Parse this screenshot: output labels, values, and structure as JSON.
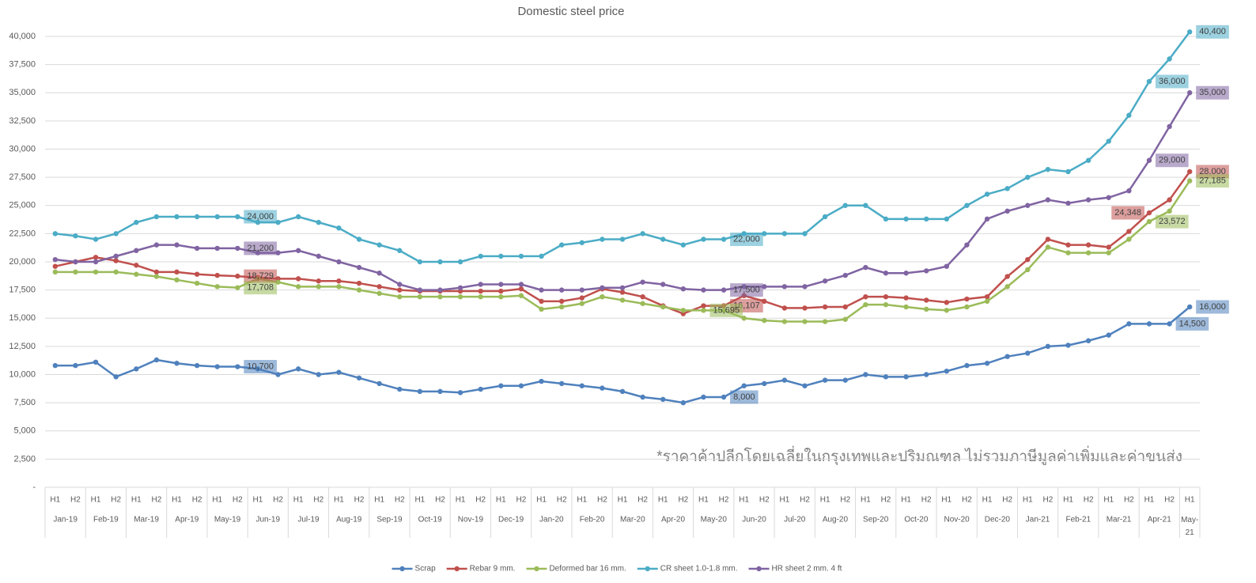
{
  "chart_data": {
    "type": "line",
    "title": "Domestic steel price",
    "categories": [
      "H1",
      "H2",
      "H1",
      "H2",
      "H1",
      "H2",
      "H1",
      "H2",
      "H1",
      "H2",
      "H1",
      "H2",
      "H1",
      "H2",
      "H1",
      "H2",
      "H1",
      "H2",
      "H1",
      "H2",
      "H1",
      "H2",
      "H1",
      "H2",
      "H1",
      "H2",
      "H1",
      "H2",
      "H1",
      "H2",
      "H1",
      "H2",
      "H1",
      "H2",
      "H1",
      "H2",
      "H1",
      "H2",
      "H1",
      "H2",
      "H1",
      "H2",
      "H1",
      "H2",
      "H1",
      "H2",
      "H1",
      "H2",
      "H1",
      "H2",
      "H1",
      "H2",
      "H1",
      "H2",
      "H1",
      "H2",
      "H1"
    ],
    "category_groups": [
      "Jan-19",
      "Feb-19",
      "Mar-19",
      "Apr-19",
      "May-19",
      "Jun-19",
      "Jul-19",
      "Aug-19",
      "Sep-19",
      "Oct-19",
      "Nov-19",
      "Dec-19",
      "Jan-20",
      "Feb-20",
      "Mar-20",
      "Apr-20",
      "May-20",
      "Jun-20",
      "Jul-20",
      "Aug-20",
      "Sep-20",
      "Oct-20",
      "Nov-20",
      "Dec-20",
      "Jan-21",
      "Feb-21",
      "Mar-21",
      "Apr-21",
      "May-21"
    ],
    "ylim": [
      0,
      40000
    ],
    "yticks": [
      {
        "value": 0,
        "label": "-"
      },
      {
        "value": 2500,
        "label": "2,500"
      },
      {
        "value": 5000,
        "label": "5,000"
      },
      {
        "value": 7500,
        "label": "7,500"
      },
      {
        "value": 10000,
        "label": "10,000"
      },
      {
        "value": 12500,
        "label": "12,500"
      },
      {
        "value": 15000,
        "label": "15,000"
      },
      {
        "value": 17500,
        "label": "17,500"
      },
      {
        "value": 20000,
        "label": "20,000"
      },
      {
        "value": 22500,
        "label": "22,500"
      },
      {
        "value": 25000,
        "label": "25,000"
      },
      {
        "value": 27500,
        "label": "27,500"
      },
      {
        "value": 30000,
        "label": "30,000"
      },
      {
        "value": 32500,
        "label": "32,500"
      },
      {
        "value": 35000,
        "label": "35,000"
      },
      {
        "value": 37500,
        "label": "37,500"
      },
      {
        "value": 40000,
        "label": "40,000"
      }
    ],
    "grid": true,
    "legend": "bottom",
    "series": [
      {
        "name": "Scrap",
        "color": "#4f81bd",
        "values": [
          10800,
          10800,
          11100,
          9800,
          10500,
          11300,
          11000,
          10800,
          10700,
          10700,
          10500,
          10000,
          10500,
          10000,
          10200,
          9700,
          9200,
          8700,
          8500,
          8500,
          8400,
          8700,
          9000,
          9000,
          9400,
          9200,
          9000,
          8800,
          8500,
          8000,
          7800,
          7500,
          8000,
          8000,
          9000,
          9200,
          9500,
          9000,
          9500,
          9500,
          10000,
          9800,
          9800,
          10000,
          10300,
          10800,
          11000,
          11600,
          11900,
          12500,
          12600,
          13000,
          13500,
          14500,
          14500,
          14500,
          16000
        ],
        "value_labels": [
          null,
          null,
          null,
          null,
          null,
          null,
          null,
          null,
          null,
          "10,700",
          null,
          null,
          null,
          null,
          null,
          null,
          null,
          null,
          null,
          null,
          null,
          null,
          null,
          null,
          null,
          null,
          null,
          null,
          null,
          null,
          null,
          null,
          null,
          "8,000",
          null,
          null,
          null,
          null,
          null,
          null,
          null,
          null,
          null,
          null,
          null,
          null,
          null,
          null,
          null,
          null,
          null,
          null,
          null,
          null,
          null,
          "14,500",
          "16,000"
        ]
      },
      {
        "name": "Rebar 9 mm.",
        "color": "#c0504d",
        "values": [
          19600,
          20000,
          20400,
          20100,
          19700,
          19100,
          19100,
          18900,
          18800,
          18729,
          18600,
          18500,
          18500,
          18300,
          18300,
          18100,
          17800,
          17500,
          17400,
          17400,
          17400,
          17400,
          17400,
          17600,
          16500,
          16500,
          16800,
          17600,
          17300,
          16900,
          16100,
          15400,
          16100,
          16107,
          17000,
          16500,
          15900,
          15900,
          16000,
          16000,
          16900,
          16900,
          16800,
          16600,
          16400,
          16700,
          16900,
          18700,
          20200,
          22000,
          21500,
          21500,
          21300,
          22700,
          24348,
          25500,
          28000
        ],
        "value_labels": [
          null,
          null,
          null,
          null,
          null,
          null,
          null,
          null,
          null,
          "18,729",
          null,
          null,
          null,
          null,
          null,
          null,
          null,
          null,
          null,
          null,
          null,
          null,
          null,
          null,
          null,
          null,
          null,
          null,
          null,
          null,
          null,
          null,
          null,
          "16,107",
          null,
          null,
          null,
          null,
          null,
          null,
          null,
          null,
          null,
          null,
          null,
          null,
          null,
          null,
          null,
          null,
          null,
          null,
          null,
          null,
          "24,348",
          null,
          "28,000"
        ]
      },
      {
        "name": "Deformed bar 16 mm.",
        "color": "#9bbb59",
        "values": [
          19100,
          19100,
          19100,
          19100,
          18900,
          18700,
          18400,
          18100,
          17800,
          17708,
          18500,
          18200,
          17800,
          17800,
          17800,
          17500,
          17200,
          16900,
          16900,
          16900,
          16900,
          16900,
          16900,
          17000,
          15800,
          16000,
          16300,
          16900,
          16600,
          16300,
          16000,
          15700,
          15695,
          15700,
          15000,
          14800,
          14700,
          14700,
          14700,
          14900,
          16200,
          16200,
          16000,
          15800,
          15700,
          16000,
          16500,
          17800,
          19300,
          21300,
          20800,
          20800,
          20800,
          22000,
          23572,
          24500,
          27185
        ],
        "value_labels": [
          null,
          null,
          null,
          null,
          null,
          null,
          null,
          null,
          null,
          "17,708",
          null,
          null,
          null,
          null,
          null,
          null,
          null,
          null,
          null,
          null,
          null,
          null,
          null,
          null,
          null,
          null,
          null,
          null,
          null,
          null,
          null,
          null,
          "15,695",
          null,
          null,
          null,
          null,
          null,
          null,
          null,
          null,
          null,
          null,
          null,
          null,
          null,
          null,
          null,
          null,
          null,
          null,
          null,
          null,
          null,
          "23,572",
          null,
          "27,185"
        ]
      },
      {
        "name": "CR sheet 1.0-1.8 mm.",
        "color": "#4bacc6",
        "values": [
          22500,
          22300,
          22000,
          22500,
          23500,
          24000,
          24000,
          24000,
          24000,
          24000,
          23500,
          23500,
          24000,
          23500,
          23000,
          22000,
          21500,
          21000,
          20000,
          20000,
          20000,
          20500,
          20500,
          20500,
          20500,
          21500,
          21700,
          22000,
          22000,
          22500,
          22000,
          21500,
          22000,
          22000,
          22500,
          22500,
          22500,
          22500,
          24000,
          25000,
          25000,
          23800,
          23800,
          23800,
          23800,
          25000,
          26000,
          26500,
          27500,
          28200,
          28000,
          29000,
          30700,
          33000,
          36000,
          38000,
          40400
        ],
        "value_labels": [
          null,
          null,
          null,
          null,
          null,
          null,
          null,
          null,
          null,
          "24,000",
          null,
          null,
          null,
          null,
          null,
          null,
          null,
          null,
          null,
          null,
          null,
          null,
          null,
          null,
          null,
          null,
          null,
          null,
          null,
          null,
          null,
          null,
          null,
          "22,000",
          null,
          null,
          null,
          null,
          null,
          null,
          null,
          null,
          null,
          null,
          null,
          null,
          null,
          null,
          null,
          null,
          null,
          null,
          null,
          null,
          "36,000",
          null,
          "40,400"
        ]
      },
      {
        "name": "HR sheet 2 mm. 4 ft",
        "color": "#8064a2",
        "values": [
          20200,
          20000,
          20000,
          20500,
          21000,
          21500,
          21500,
          21200,
          21200,
          21200,
          20800,
          20800,
          21000,
          20500,
          20000,
          19500,
          19000,
          18000,
          17500,
          17500,
          17700,
          18000,
          18000,
          18000,
          17500,
          17500,
          17500,
          17700,
          17700,
          18200,
          18000,
          17600,
          17500,
          17500,
          17800,
          17800,
          17800,
          17800,
          18300,
          18800,
          19500,
          19000,
          19000,
          19200,
          19600,
          21500,
          23800,
          24500,
          25000,
          25500,
          25200,
          25500,
          25700,
          26300,
          29000,
          32000,
          35000
        ],
        "value_labels": [
          null,
          null,
          null,
          null,
          null,
          null,
          null,
          null,
          null,
          "21,200",
          null,
          null,
          null,
          null,
          null,
          null,
          null,
          null,
          null,
          null,
          null,
          null,
          null,
          null,
          null,
          null,
          null,
          null,
          null,
          null,
          null,
          null,
          null,
          "17,500",
          null,
          null,
          null,
          null,
          null,
          null,
          null,
          null,
          null,
          null,
          null,
          null,
          null,
          null,
          null,
          null,
          null,
          null,
          null,
          null,
          "29,000",
          null,
          "35,000"
        ]
      }
    ],
    "annotations": [
      "*ราคาค้าปลีกโดยเฉลี่ยในกรุงเทพและปริมณฑล ไม่รวมภาษีมูลค่าเพิ่มและค่าขนส่ง"
    ]
  }
}
